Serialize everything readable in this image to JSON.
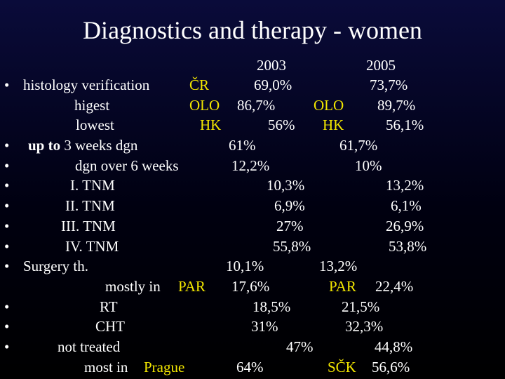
{
  "title": "Diagnostics and therapy - women",
  "bullet_symbol": "•",
  "years": {
    "y2003": "2003",
    "y2005": "2005"
  },
  "rows": {
    "histology": {
      "label": "histology verification",
      "region": "ČR",
      "v2003": "69,0%",
      "v2005": "73,7%"
    },
    "highest": {
      "label": "higest",
      "region": "OLO",
      "v2003": "86,7%",
      "region2005": "OLO",
      "v2005": "89,7%"
    },
    "lowest": {
      "label": "lowest",
      "region": "HK",
      "v2003": "56%",
      "region2005": "HK",
      "v2005": "56,1%"
    },
    "upto3": {
      "label_bold": "up to",
      "label": "3 weeks dgn",
      "v2003": "61%",
      "v2005": "61,7%"
    },
    "over6": {
      "label": "dgn over 6 weeks",
      "v2003": "12,2%",
      "v2005": "10%"
    },
    "tnm1": {
      "label": "I. TNM",
      "v2003": "10,3%",
      "v2005": "13,2%"
    },
    "tnm2": {
      "label": "II. TNM",
      "v2003": "6,9%",
      "v2005": "6,1%"
    },
    "tnm3": {
      "label": "III. TNM",
      "v2003": "27%",
      "v2005": "26,9%"
    },
    "tnm4": {
      "label": "IV. TNM",
      "v2003": "55,8%",
      "v2005": "53,8%"
    },
    "surgery": {
      "label": "Surgery th.",
      "v2003": "10,1%",
      "v2005": "13,2%"
    },
    "mostly_par": {
      "label": "mostly in",
      "region": "PAR",
      "v2003": "17,6%",
      "region2005": "PAR",
      "v2005": "22,4%"
    },
    "rt": {
      "label": "RT",
      "v2003": "18,5%",
      "v2005": "21,5%"
    },
    "cht": {
      "label": "CHT",
      "v2003": "31%",
      "v2005": "32,3%"
    },
    "not_treated": {
      "label": "not treated",
      "v2003": "47%",
      "v2005": "44,8%"
    },
    "most_prague": {
      "label": "most in",
      "region": "Prague",
      "v2003": "64%",
      "region2005": "SČK",
      "v2005": "56,6%"
    }
  },
  "colors": {
    "background": "#000010",
    "text": "#ffffff",
    "region": "#f2e600"
  }
}
